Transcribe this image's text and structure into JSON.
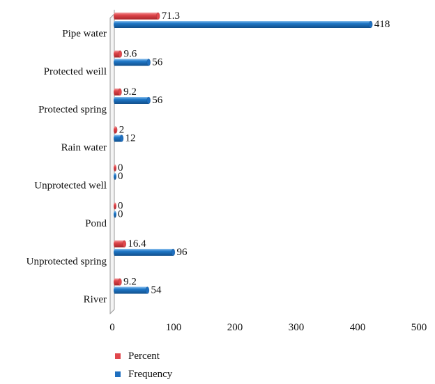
{
  "chart_data": {
    "type": "bar",
    "orientation": "horizontal",
    "style": "3d-cylinder",
    "categories": [
      "Pipe water",
      "Protected weill",
      "Protected spring",
      "Rain water",
      "Unprotected well",
      "Pond",
      "Unprotected spring",
      "River"
    ],
    "series": [
      {
        "name": "Percent",
        "values": [
          71.3,
          9.6,
          9.2,
          2,
          0,
          0,
          16.4,
          9.2
        ],
        "labels": [
          "71.3",
          "9.6",
          "9.2",
          "2",
          "0",
          "0",
          "16.4",
          "9.2"
        ],
        "color": "#e0474c"
      },
      {
        "name": "Frequency",
        "values": [
          418,
          56,
          56,
          12,
          0,
          0,
          96,
          54
        ],
        "labels": [
          "418",
          "56",
          "56",
          "12",
          "0",
          "0",
          "96",
          "54"
        ],
        "color": "#1f6fbf"
      }
    ],
    "xlim": [
      0,
      500
    ],
    "xticks": [
      "0",
      "100",
      "200",
      "300",
      "400",
      "500"
    ],
    "title": "",
    "xlabel": "",
    "ylabel": "",
    "grid": false,
    "legend_position": "bottom"
  }
}
